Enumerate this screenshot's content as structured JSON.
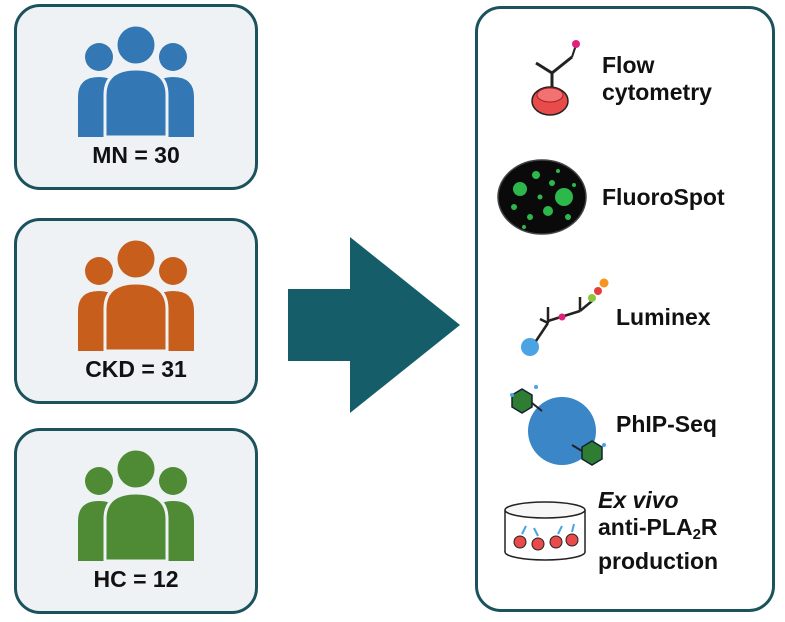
{
  "cohorts": [
    {
      "label": "MN = 30",
      "color": "#3377b5"
    },
    {
      "label": "CKD = 31",
      "color": "#c85e1c"
    },
    {
      "label": "HC = 12",
      "color": "#4f8b35"
    }
  ],
  "arrow": {
    "color": "#165d6a"
  },
  "assays": [
    {
      "line1": "Flow",
      "line2": "cytometry"
    },
    {
      "label": "FluoroSpot"
    },
    {
      "label": "Luminex"
    },
    {
      "label": "PhIP-Seq"
    },
    {
      "line1": "Ex vivo",
      "line2_pre": "anti-PLA",
      "line2_sub": "2",
      "line2_post": "R",
      "line3": "production"
    }
  ]
}
